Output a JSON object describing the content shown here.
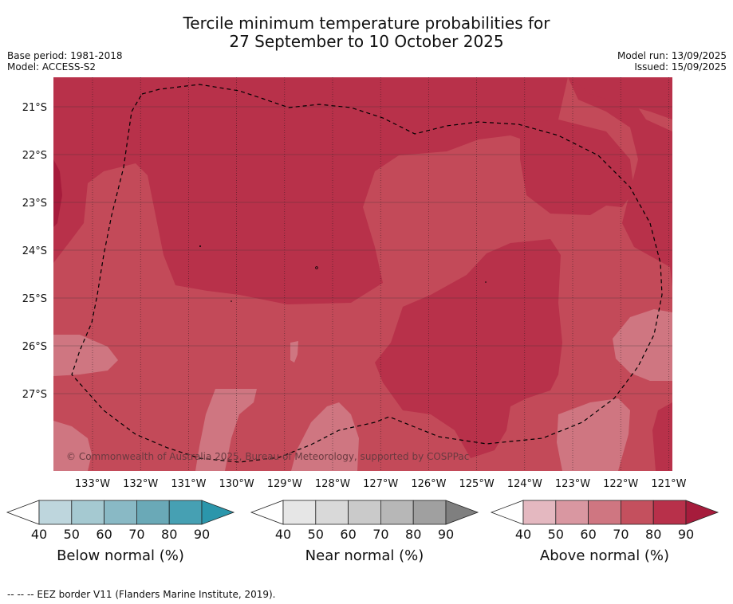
{
  "title": {
    "line1": "Tercile minimum temperature probabilities for",
    "line2": "27 September to 10 October 2025"
  },
  "meta": {
    "base_period": "Base period: 1981-2018",
    "model": "Model: ACCESS-S2",
    "model_run": "Model run: 13/09/2025",
    "issued": "Issued: 15/09/2025"
  },
  "copyright": "© Commonwealth of Australia 2025, Bureau of Meteorology, supported by COSPPac",
  "footnote": "--  --  -- EEZ border V11 (Flanders Marine Institute, 2019).",
  "chart_data": {
    "type": "heatmap",
    "lon_ticks": [
      "133°W",
      "132°W",
      "131°W",
      "130°W",
      "129°W",
      "128°W",
      "127°W",
      "126°W",
      "125°W",
      "124°W",
      "123°W",
      "122°W",
      "121°W"
    ],
    "lat_ticks": [
      "21°S",
      "22°S",
      "23°S",
      "24°S",
      "25°S",
      "26°S",
      "27°S"
    ],
    "grid": true,
    "legends": [
      {
        "label": "Below normal (%)",
        "levels": [
          "40",
          "50",
          "60",
          "70",
          "80",
          "90"
        ],
        "colors": [
          "#ffffff",
          "#bed6dd",
          "#a5c9d1",
          "#89b9c5",
          "#6aa9b7",
          "#46a0b3",
          "#2b96ab"
        ]
      },
      {
        "label": "Near normal (%)",
        "levels": [
          "40",
          "50",
          "60",
          "70",
          "80",
          "90"
        ],
        "colors": [
          "#ffffff",
          "#e6e6e6",
          "#d9d9d9",
          "#cacaca",
          "#b7b7b7",
          "#a0a0a0",
          "#7f7f7f"
        ]
      },
      {
        "label": "Above normal (%)",
        "levels": [
          "40",
          "50",
          "60",
          "70",
          "80",
          "90"
        ],
        "colors": [
          "#ffffff",
          "#e4b8c0",
          "#d997a1",
          "#cf7681",
          "#c4505e",
          "#b8304a",
          "#a61c3c"
        ]
      }
    ],
    "regions": [
      {
        "category": "Above normal",
        "value": "70-80"
      },
      {
        "category": "Above normal",
        "value": "80-90"
      },
      {
        "category": "Above normal",
        "value": "60-70"
      }
    ]
  }
}
